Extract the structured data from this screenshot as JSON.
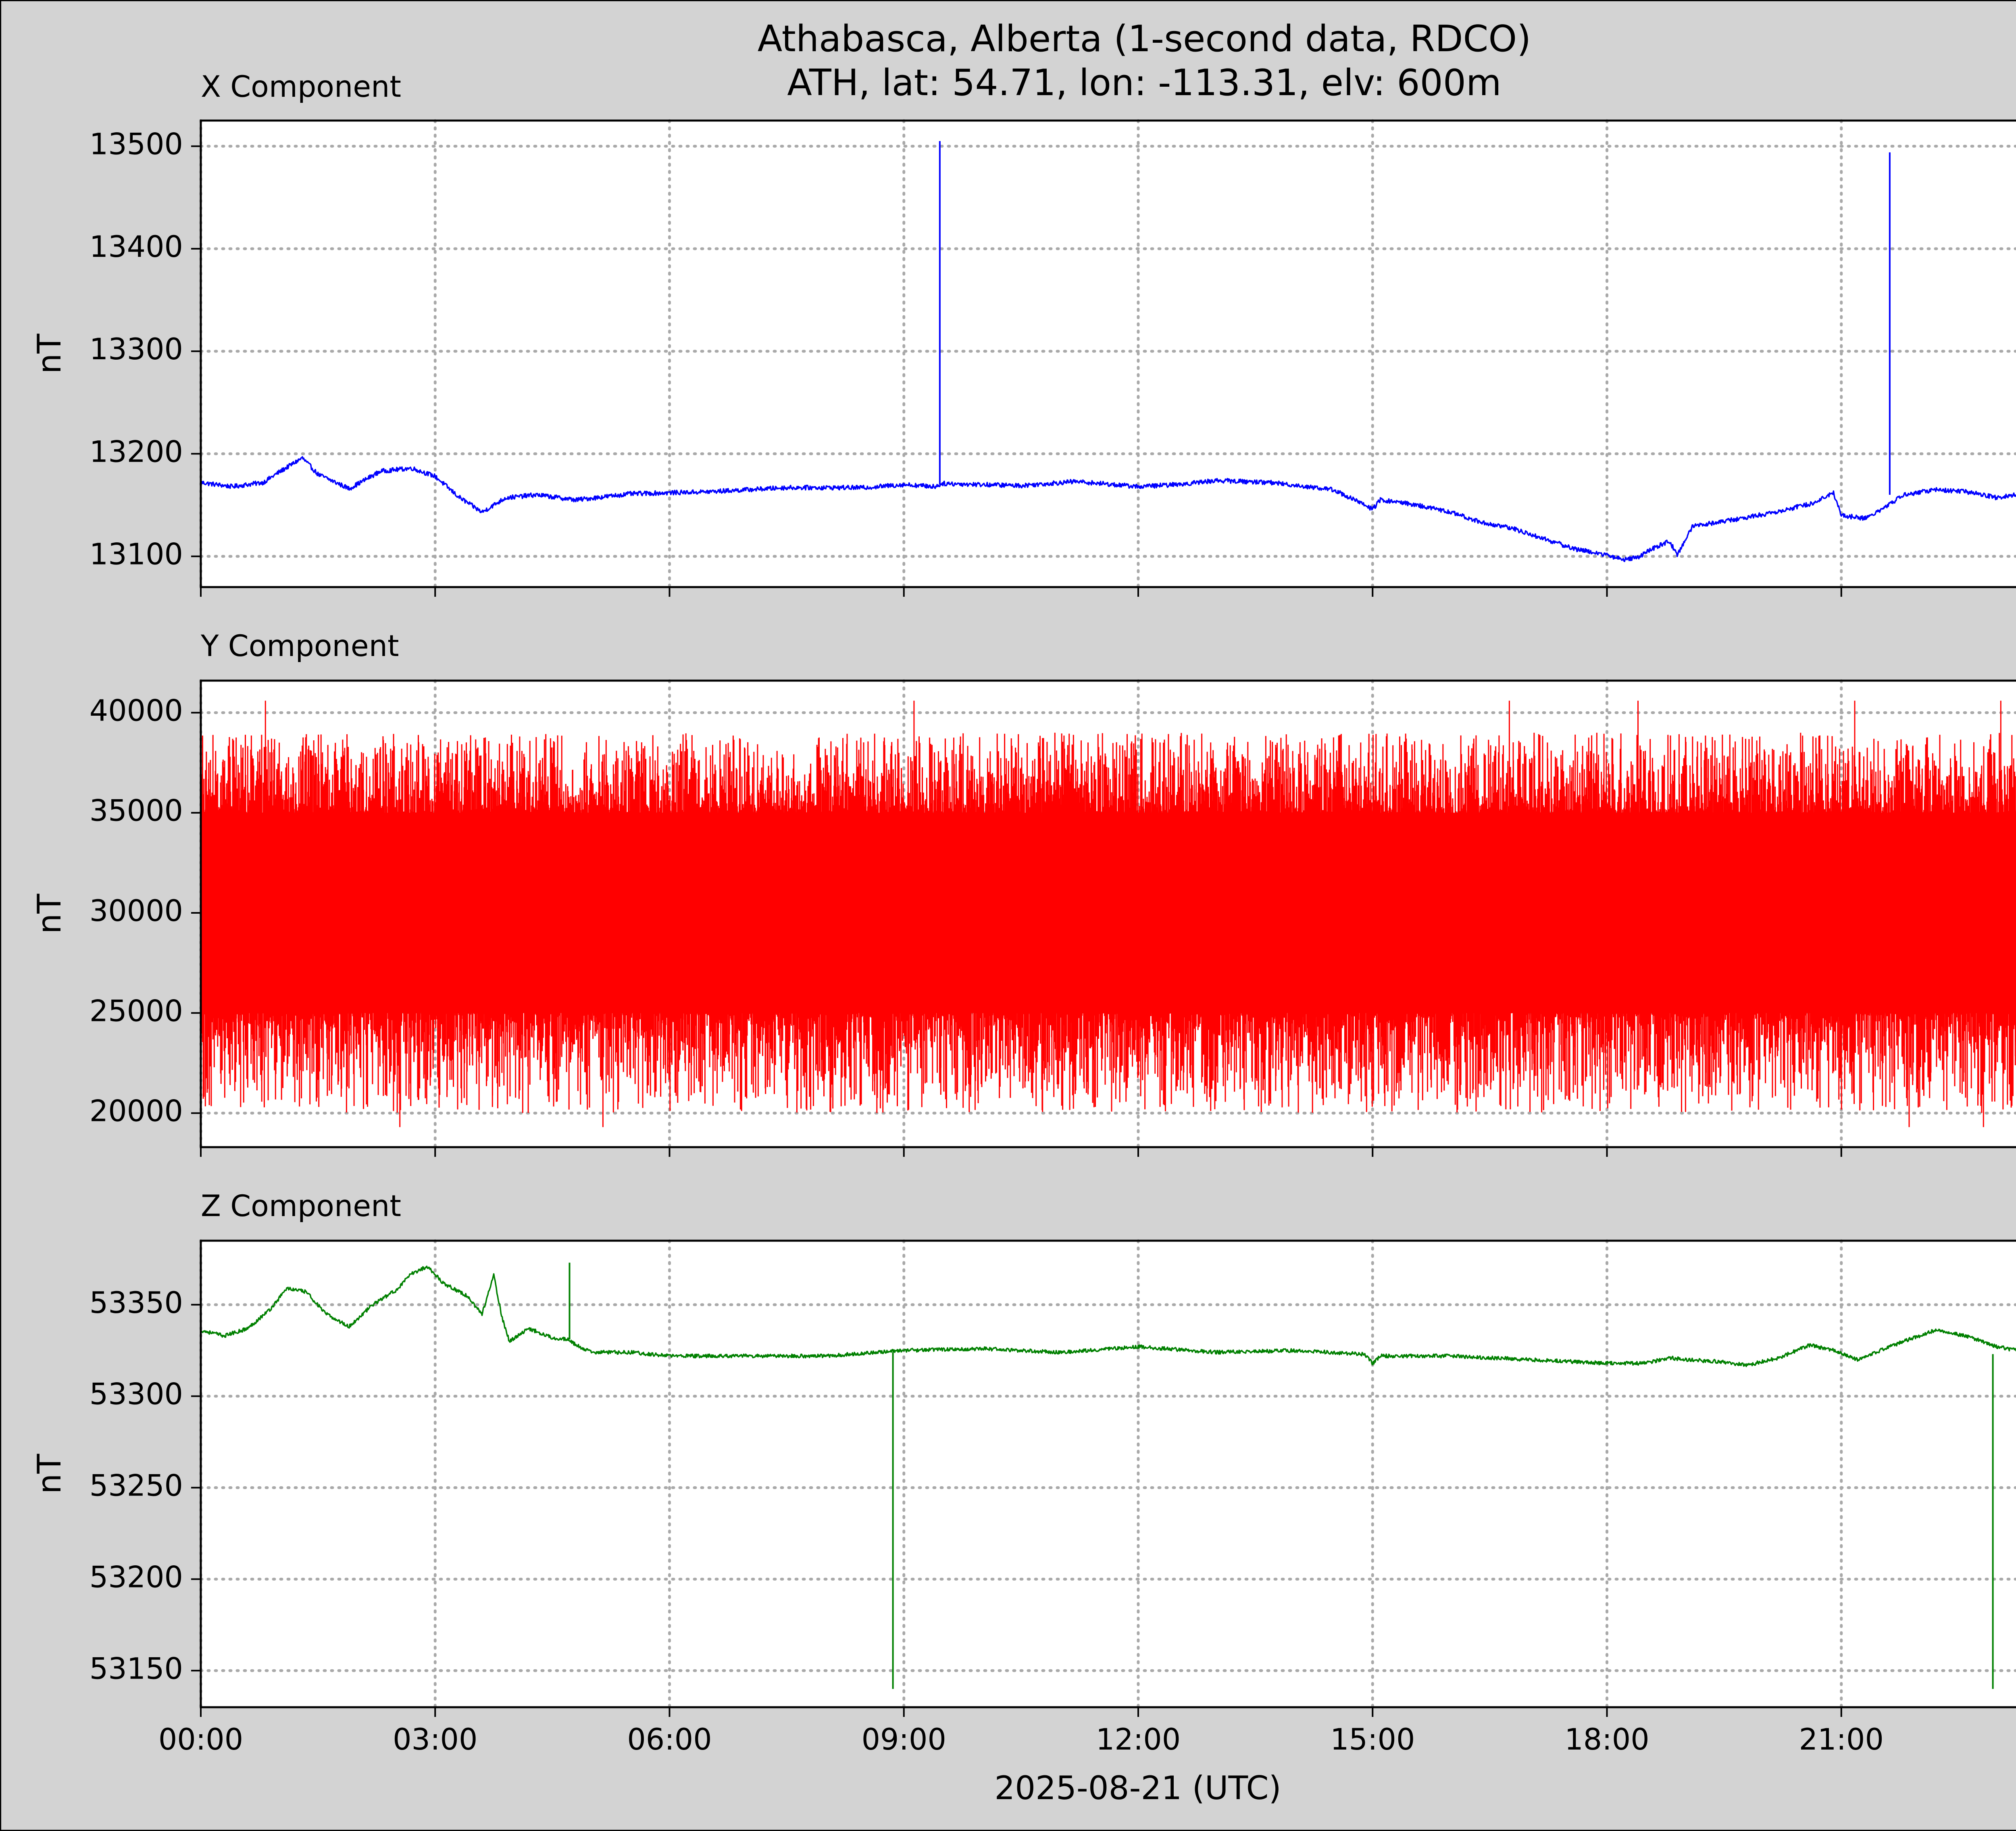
{
  "figure": {
    "title_line1": "Athabasca, Alberta (1-second data, RDCO)",
    "title_line2": "ATH, lat: 54.71, lon: -113.31, elv: 600m",
    "xlabel": "2025-08-21 (UTC)",
    "background": "#d3d3d3"
  },
  "chart_data": [
    {
      "type": "line",
      "title": "X Component",
      "ylabel": "nT",
      "color": "#0000ff",
      "x_unit": "hours since 2025-08-21 00:00 UTC",
      "xlim": [
        0,
        24
      ],
      "ylim": [
        13070,
        13525
      ],
      "yticks": [
        13100,
        13200,
        13300,
        13400,
        13500
      ],
      "xticks": [
        0,
        3,
        6,
        9,
        12,
        15,
        18,
        21
      ],
      "xtick_labels": [
        "00:00",
        "03:00",
        "06:00",
        "09:00",
        "12:00",
        "15:00",
        "18:00",
        "21:00"
      ],
      "grid": true,
      "series": [
        {
          "x": [
            0,
            0.4,
            0.8,
            1.0,
            1.3,
            1.5,
            1.9,
            2.3,
            2.7,
            3.0,
            3.3,
            3.6,
            3.9,
            4.3,
            4.8,
            5.5,
            6.5,
            7.5,
            8.5,
            9.0,
            9.4,
            9.5,
            10.5,
            11.2,
            12.0,
            12.5,
            13.0,
            13.7,
            14.5,
            14.9,
            15.0,
            15.1,
            15.5,
            16.0,
            16.4,
            16.8,
            17.2,
            17.6,
            17.9,
            18.2,
            18.4,
            18.6,
            18.8,
            18.9,
            19.1,
            19.4,
            19.8,
            20.2,
            20.6,
            20.9,
            21.0,
            21.3,
            21.5,
            21.8,
            22.2,
            22.6,
            23.0,
            23.4,
            24.0
          ],
          "y": [
            13172,
            13168,
            13172,
            13182,
            13196,
            13180,
            13166,
            13183,
            13186,
            13178,
            13158,
            13143,
            13157,
            13160,
            13155,
            13161,
            13163,
            13167,
            13167,
            13170,
            13168,
            13171,
            13169,
            13173,
            13168,
            13170,
            13174,
            13172,
            13165,
            13150,
            13146,
            13155,
            13151,
            13143,
            13133,
            13127,
            13117,
            13107,
            13103,
            13097,
            13099,
            13108,
            13115,
            13101,
            13130,
            13133,
            13138,
            13144,
            13151,
            13162,
            13140,
            13137,
            13145,
            13160,
            13165,
            13163,
            13157,
            13162,
            13170
          ]
        },
        {
          "name": "spike",
          "x": [
            9.46,
            9.46,
            21.62,
            21.62
          ],
          "y": [
            13170,
            13505,
            13160,
            13494
          ]
        }
      ]
    },
    {
      "type": "line",
      "title": "Y Component",
      "ylabel": "nT",
      "color": "#ff0000",
      "x_unit": "hours since 2025-08-21 00:00 UTC",
      "xlim": [
        0,
        24
      ],
      "ylim": [
        18300,
        41600
      ],
      "yticks": [
        20000,
        25000,
        30000,
        35000,
        40000
      ],
      "xticks": [
        0,
        3,
        6,
        9,
        12,
        15,
        18,
        21
      ],
      "xtick_labels": [
        "00:00",
        "03:00",
        "06:00",
        "09:00",
        "12:00",
        "15:00",
        "18:00",
        "21:00"
      ],
      "grid": true,
      "series": [
        {
          "description_of_values": "dense 1-second noise",
          "center": 29500,
          "core_band": [
            25000,
            35000
          ],
          "envelope": [
            20000,
            39000
          ],
          "extreme_min": 19300,
          "extreme_max": 40600
        }
      ]
    },
    {
      "type": "line",
      "title": "Z Component",
      "ylabel": "nT",
      "color": "#008000",
      "x_unit": "hours since 2025-08-21 00:00 UTC",
      "xlim": [
        0,
        24
      ],
      "ylim": [
        53130,
        53385
      ],
      "yticks": [
        53150,
        53200,
        53250,
        53300,
        53350
      ],
      "xticks": [
        0,
        3,
        6,
        9,
        12,
        15,
        18,
        21
      ],
      "xtick_labels": [
        "00:00",
        "03:00",
        "06:00",
        "09:00",
        "12:00",
        "15:00",
        "18:00",
        "21:00"
      ],
      "grid": true,
      "series": [
        {
          "x": [
            0,
            0.3,
            0.6,
            0.9,
            1.1,
            1.35,
            1.6,
            1.9,
            2.2,
            2.5,
            2.7,
            2.9,
            3.1,
            3.4,
            3.6,
            3.75,
            3.85,
            3.95,
            4.2,
            4.5,
            4.7,
            4.8,
            5.0,
            5.5,
            6.0,
            7.0,
            8.0,
            9.0,
            10.0,
            11.0,
            12.0,
            13.0,
            14.0,
            14.9,
            15.0,
            15.1,
            16.0,
            17.0,
            18.0,
            18.5,
            18.8,
            19.0,
            19.4,
            19.8,
            20.2,
            20.6,
            20.9,
            21.2,
            21.5,
            21.8,
            22.2,
            22.6,
            23.0,
            23.5,
            24.0
          ],
          "y": [
            53336,
            53333,
            53337,
            53348,
            53359,
            53357,
            53345,
            53338,
            53350,
            53358,
            53367,
            53371,
            53362,
            53355,
            53345,
            53366,
            53344,
            53330,
            53337,
            53332,
            53331,
            53328,
            53324,
            53324,
            53322,
            53322,
            53322,
            53325,
            53326,
            53324,
            53327,
            53324,
            53325,
            53323,
            53318,
            53322,
            53322,
            53320,
            53318,
            53318,
            53321,
            53320,
            53319,
            53317,
            53321,
            53328,
            53325,
            53320,
            53325,
            53330,
            53336,
            53333,
            53327,
            53323,
            53326
          ]
        },
        {
          "name": "spike",
          "x": [
            4.72,
            4.72,
            8.86,
            8.86,
            22.94,
            22.94
          ],
          "y": [
            53331,
            53373,
            53324,
            53140,
            53323,
            53140
          ]
        }
      ]
    }
  ]
}
